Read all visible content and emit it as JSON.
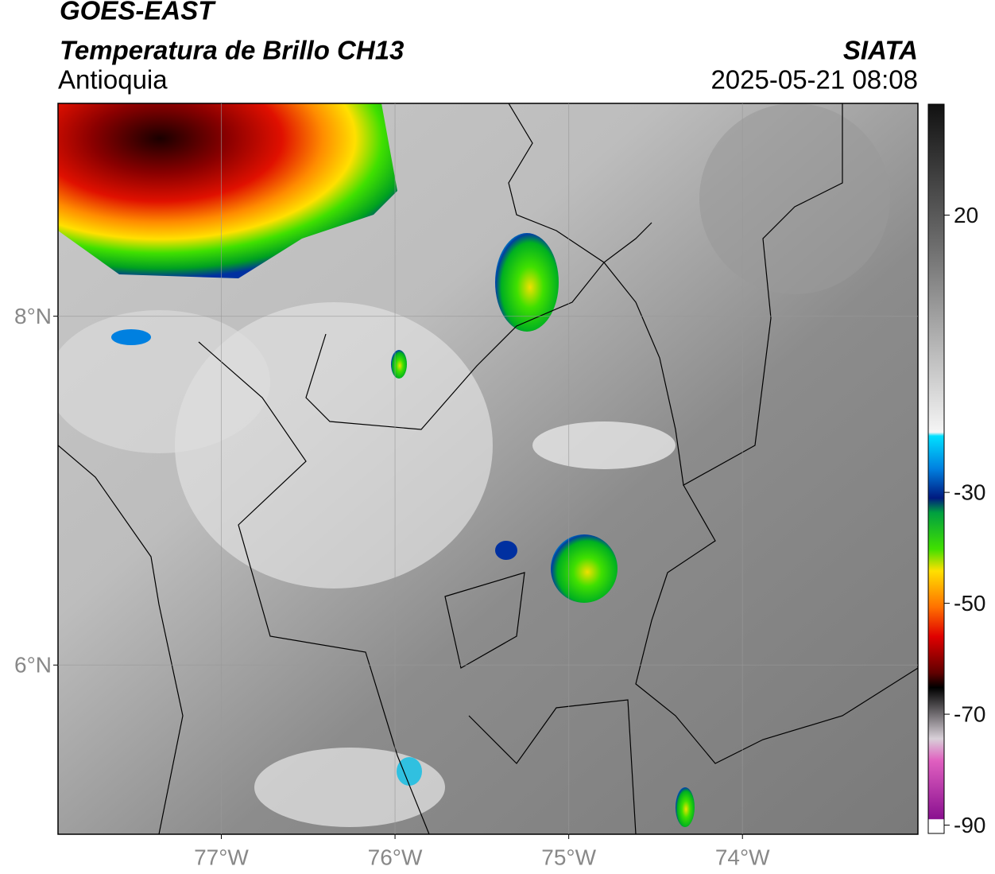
{
  "header": {
    "satellite": "GOES-EAST",
    "product": "Temperatura de Brillo CH13",
    "region": "Antioquia",
    "agency": "SIATA",
    "timestamp": "2025-05-21 08:08"
  },
  "map": {
    "xlim": [
      -77.94,
      -72.99
    ],
    "ylim": [
      5.03,
      9.22
    ],
    "xticks": [
      {
        "value": -77,
        "label": "77°W"
      },
      {
        "value": -76,
        "label": "76°W"
      },
      {
        "value": -75,
        "label": "75°W"
      },
      {
        "value": -74,
        "label": "74°W"
      }
    ],
    "yticks": [
      {
        "value": 6,
        "label": "6°N"
      },
      {
        "value": 8,
        "label": "8°N"
      }
    ],
    "grid": true
  },
  "colorbar": {
    "lim": [
      -91.5,
      40
    ],
    "ticks": [
      20,
      -30,
      -50,
      -70,
      -90
    ]
  }
}
